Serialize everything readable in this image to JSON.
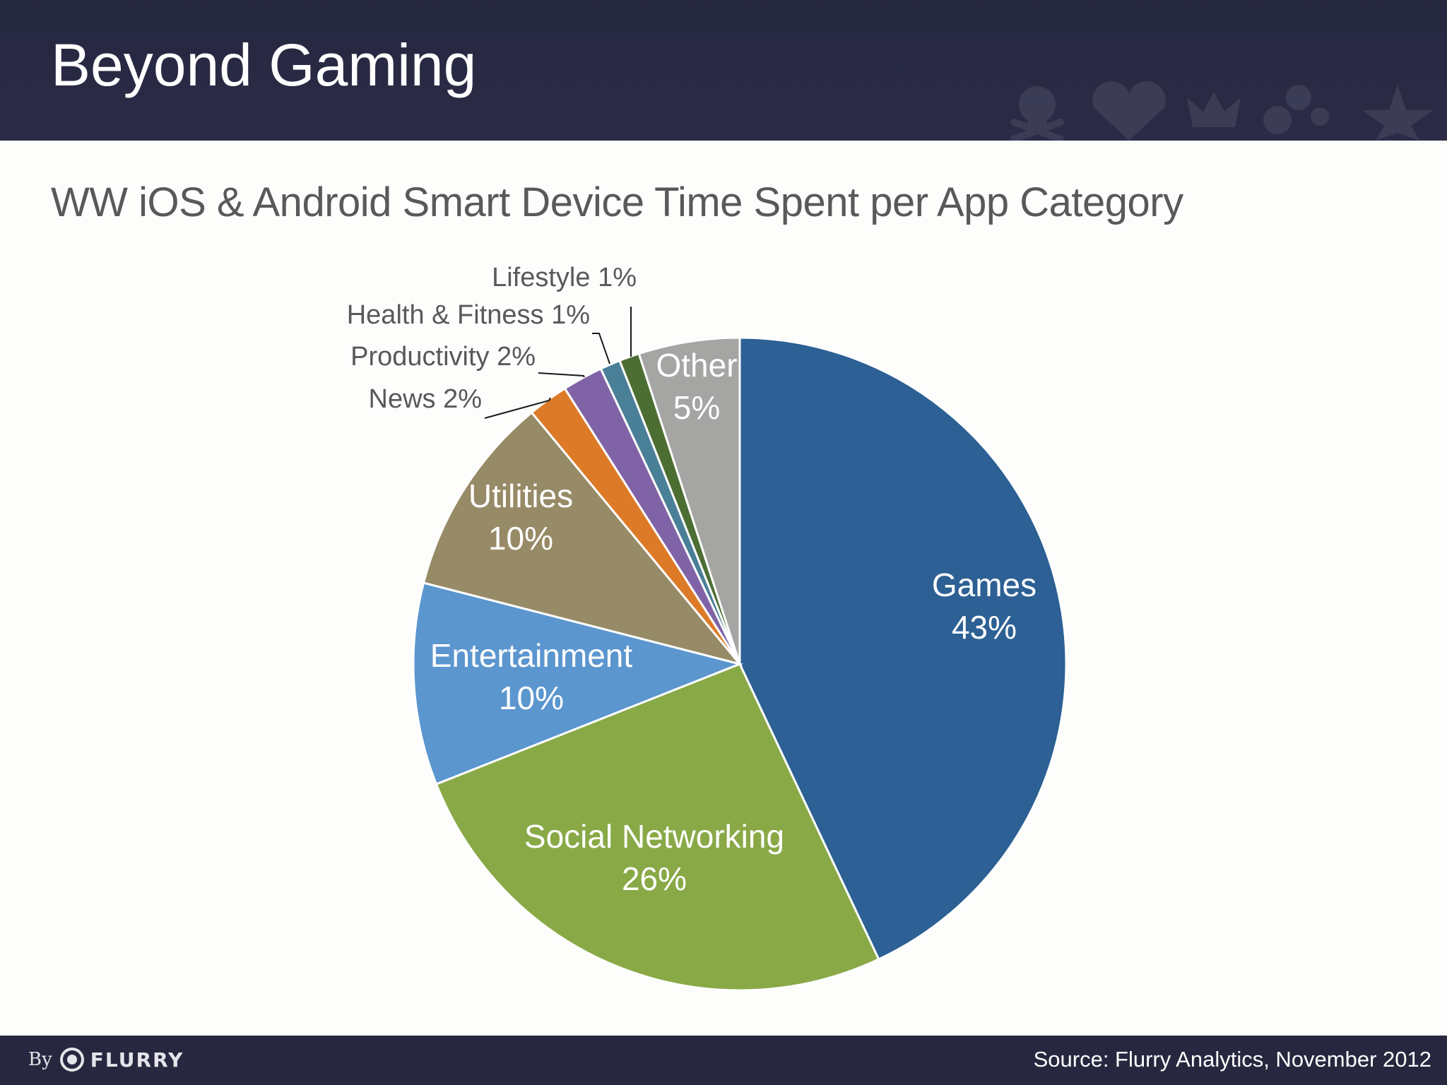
{
  "slide": {
    "title": "Beyond Gaming",
    "subtitle": "WW iOS & Android Smart Device Time Spent per App Category"
  },
  "footer": {
    "logo_prefix": "By",
    "logo_text": "FLURRY",
    "source": "Source: Flurry Analytics, November 2012"
  },
  "header_icons": [
    "skull-icon",
    "heart-icon",
    "crown-icon",
    "gears-icon",
    "star-icon"
  ],
  "colors": {
    "header_bg": "#25273f",
    "footer_bg": "#27273f",
    "subtitle_text": "#595959"
  },
  "chart_data": {
    "type": "pie",
    "title": "",
    "slices": [
      {
        "label": "Games",
        "value": 43,
        "display": "43%",
        "color": "#2d6094",
        "label_color": "#ffffff",
        "inside": true
      },
      {
        "label": "Social Networking",
        "value": 26,
        "display": "26%",
        "color": "#89a947",
        "label_color": "#ffffff",
        "inside": true
      },
      {
        "label": "Entertainment",
        "value": 10,
        "display": "10%",
        "color": "#5b96cf",
        "label_color": "#ffffff",
        "inside": true
      },
      {
        "label": "Utilities",
        "value": 10,
        "display": "10%",
        "color": "#978a66",
        "label_color": "#ffffff",
        "inside": true
      },
      {
        "label": "News",
        "value": 2,
        "display": "2%",
        "color": "#dd7a27",
        "label_color": "#595959",
        "inside": false
      },
      {
        "label": "Productivity",
        "value": 2,
        "display": "2%",
        "color": "#8063a6",
        "label_color": "#595959",
        "inside": false
      },
      {
        "label": "Health & Fitness",
        "value": 1,
        "display": "1%",
        "color": "#4a7f98",
        "label_color": "#595959",
        "inside": false
      },
      {
        "label": "Lifestyle",
        "value": 1,
        "display": "1%",
        "color": "#4d6e33",
        "label_color": "#595959",
        "inside": false
      },
      {
        "label": "Other",
        "value": 5,
        "display": "5%",
        "color": "#a5a5a3",
        "label_color": "#ffffff",
        "inside": true
      }
    ],
    "start": "12 o'clock",
    "direction": "clockwise",
    "legend": "none"
  }
}
